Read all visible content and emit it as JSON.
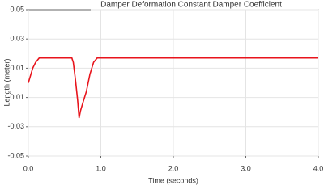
{
  "chart_data": {
    "type": "line",
    "title": "Damper Deformation Constant Damper Coefficient",
    "x_label": "Time (seconds)",
    "y_label": "Length (meter)",
    "x": [
      0,
      0.03,
      0.06,
      0.1,
      0.15,
      0.2,
      0.6,
      0.62,
      0.65,
      0.68,
      0.7,
      0.72,
      0.75,
      0.8,
      0.85,
      0.9,
      0.95,
      1.0,
      4.0
    ],
    "series": [
      {
        "name": "Damper Deformation",
        "color": "#e8141c",
        "values": [
          0,
          0.005,
          0.01,
          0.014,
          0.017,
          0.017,
          0.017,
          0.014,
          0.002,
          -0.012,
          -0.024,
          -0.019,
          -0.014,
          -0.006,
          0.006,
          0.014,
          0.017,
          0.017,
          0.017
        ]
      }
    ],
    "xlim": [
      0,
      4
    ],
    "xticks": [
      {
        "value": 0,
        "label": "0.0"
      },
      {
        "value": 1,
        "label": "1.0"
      },
      {
        "value": 2,
        "label": "2.0"
      },
      {
        "value": 3,
        "label": "3.0"
      },
      {
        "value": 4,
        "label": "4.0"
      }
    ],
    "ylim": [
      -0.05,
      0.05
    ],
    "yticks": [
      -0.05,
      -0.03,
      -0.01,
      0.01,
      0.03,
      0.05
    ],
    "grid": true
  }
}
